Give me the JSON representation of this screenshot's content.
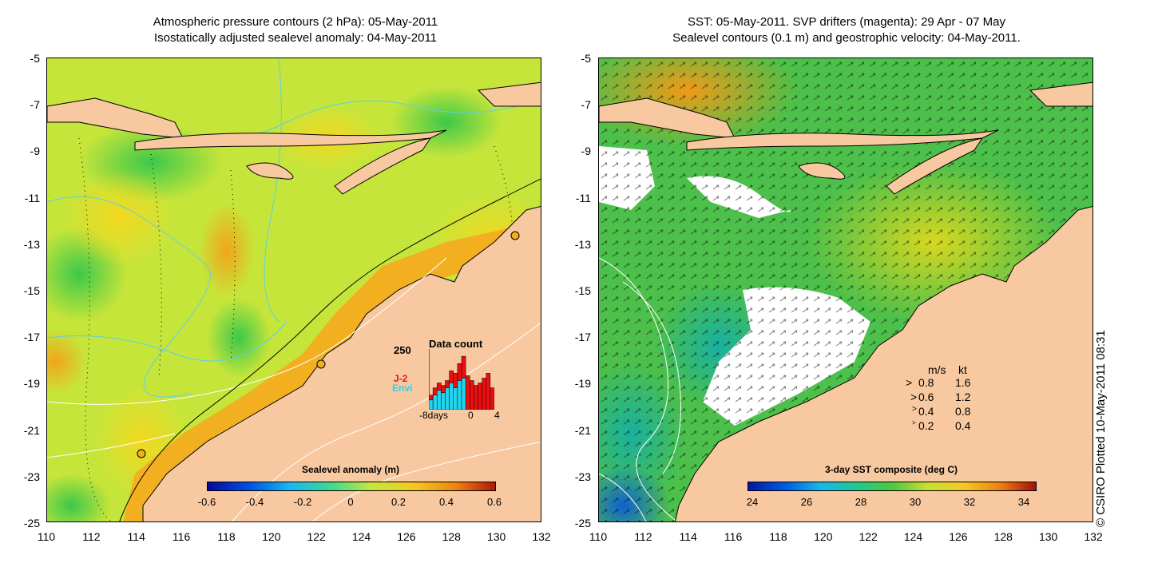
{
  "left": {
    "title_line1": "Atmospheric pressure contours (2 hPa): 05-May-2011",
    "title_line2": "Isostatically adjusted sealevel anomaly: 04-May-2011",
    "colorbar_title": "Sealevel anomaly (m)",
    "colorbar_ticks": [
      "-0.6",
      "-0.4",
      "-0.2",
      "0",
      "0.2",
      "0.4",
      "0.6"
    ],
    "data_count": {
      "title": "Data count",
      "ymax_label": "250",
      "x_ticks": [
        "-8days",
        "0",
        "4"
      ],
      "series": [
        {
          "name": "J-2",
          "color": "#e81010",
          "values": [
            60,
            90,
            110,
            100,
            120,
            160,
            150,
            190,
            220,
            140,
            120,
            100,
            110,
            130,
            150,
            90
          ]
        },
        {
          "name": "Envi",
          "color": "#22d4ee",
          "values": [
            40,
            60,
            80,
            70,
            90,
            110,
            90,
            120,
            130,
            0,
            0,
            0,
            0,
            0,
            0,
            0
          ]
        }
      ]
    }
  },
  "right": {
    "title_line1": "SST: 05-May-2011. SVP drifters (magenta): 29 Apr - 07 May",
    "title_line2": "Sealevel contours (0.1 m) and geostrophic velocity: 04-May-2011.",
    "colorbar_title": "3-day SST composite (deg C)",
    "colorbar_ticks": [
      "24",
      "26",
      "28",
      "30",
      "32",
      "34"
    ],
    "legend": {
      "header_ms": "m/s",
      "header_kt": "kt",
      "rows": [
        {
          "ms": "0.8",
          "kt": "1.6"
        },
        {
          "ms": "0.6",
          "kt": "1.2"
        },
        {
          "ms": "0.4",
          "kt": "0.8"
        },
        {
          "ms": "0.2",
          "kt": "0.4"
        }
      ]
    }
  },
  "axes": {
    "y_ticks": [
      "-5",
      "-7",
      "-9",
      "-11",
      "-13",
      "-15",
      "-17",
      "-19",
      "-21",
      "-23",
      "-25"
    ],
    "x_ticks": [
      "110",
      "112",
      "114",
      "116",
      "118",
      "120",
      "122",
      "124",
      "126",
      "128",
      "130",
      "132"
    ]
  },
  "copyright": "© CSIRO Plotted 10-May-2011 08:31",
  "colors": {
    "land": "#f8c9a0",
    "ssh_bg": "#c8e83a",
    "sst_bg": "#4ec24a"
  }
}
